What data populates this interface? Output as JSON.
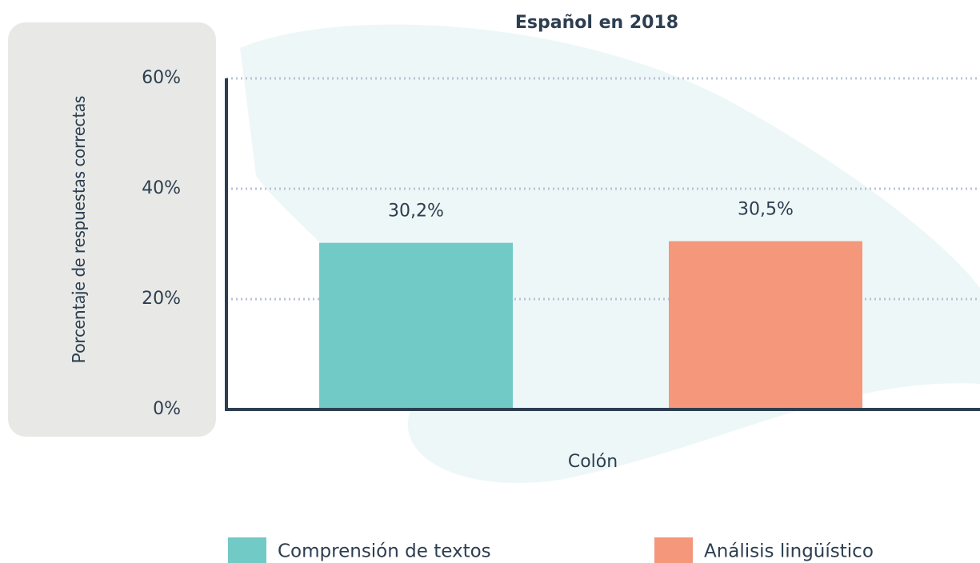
{
  "chart_data": {
    "type": "bar",
    "title": "Español en 2018",
    "y_label": "Porcentaje de respuestas correctas",
    "x_label": "Colón",
    "categories": [
      "Colón"
    ],
    "series": [
      {
        "name": "Comprensión de textos",
        "color": "#72cac6",
        "values": [
          30.2
        ],
        "value_labels": [
          "30,2%"
        ]
      },
      {
        "name": "Análisis lingüístico",
        "color": "#f4977b",
        "values": [
          30.5
        ],
        "value_labels": [
          "30,5%"
        ]
      }
    ],
    "ylim": [
      0,
      60
    ],
    "yticks": [
      {
        "value": 0,
        "label": "0%"
      },
      {
        "value": 20,
        "label": "20%"
      },
      {
        "value": 40,
        "label": "40%"
      },
      {
        "value": 60,
        "label": "60%"
      }
    ],
    "grid": true,
    "legend": "bottom"
  }
}
